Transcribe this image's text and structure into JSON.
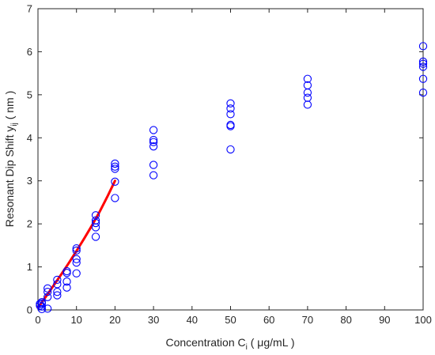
{
  "chart_data": {
    "type": "scatter",
    "xlabel_main": "Concentration C",
    "xlabel_sub": "i",
    "xlabel_unit": " ( μg/mL )",
    "ylabel_main": "Resonant Dip Shift y",
    "ylabel_sub": "ij",
    "ylabel_unit": " ( nm )",
    "xlim": [
      0,
      100
    ],
    "ylim": [
      0,
      7
    ],
    "xticks": [
      0,
      10,
      20,
      30,
      40,
      50,
      60,
      70,
      80,
      90,
      100
    ],
    "yticks": [
      0,
      1,
      2,
      3,
      4,
      5,
      6,
      7
    ],
    "grid": false,
    "legend": "none",
    "series": [
      {
        "type": "scatter",
        "marker": "open-circle",
        "color": "#0000ff",
        "points": [
          {
            "x": 0.5,
            "y": 0.1
          },
          {
            "x": 0.5,
            "y": 0.14
          },
          {
            "x": 1,
            "y": 0.02
          },
          {
            "x": 1,
            "y": 0.08
          },
          {
            "x": 1,
            "y": 0.15
          },
          {
            "x": 1,
            "y": 0.18
          },
          {
            "x": 2.5,
            "y": 0.03
          },
          {
            "x": 2.5,
            "y": 0.3
          },
          {
            "x": 2.5,
            "y": 0.42
          },
          {
            "x": 2.5,
            "y": 0.5
          },
          {
            "x": 5,
            "y": 0.34
          },
          {
            "x": 5,
            "y": 0.42
          },
          {
            "x": 5,
            "y": 0.6
          },
          {
            "x": 5,
            "y": 0.7
          },
          {
            "x": 7.5,
            "y": 0.52
          },
          {
            "x": 7.5,
            "y": 0.66
          },
          {
            "x": 7.5,
            "y": 0.86
          },
          {
            "x": 7.5,
            "y": 0.9
          },
          {
            "x": 10,
            "y": 0.85
          },
          {
            "x": 10,
            "y": 1.1
          },
          {
            "x": 10,
            "y": 1.18
          },
          {
            "x": 10,
            "y": 1.38
          },
          {
            "x": 10,
            "y": 1.43
          },
          {
            "x": 15,
            "y": 1.7
          },
          {
            "x": 15,
            "y": 1.92
          },
          {
            "x": 15,
            "y": 2.02
          },
          {
            "x": 15,
            "y": 2.08
          },
          {
            "x": 15,
            "y": 2.2
          },
          {
            "x": 20,
            "y": 2.6
          },
          {
            "x": 20,
            "y": 2.98
          },
          {
            "x": 20,
            "y": 3.28
          },
          {
            "x": 20,
            "y": 3.33
          },
          {
            "x": 20,
            "y": 3.4
          },
          {
            "x": 30,
            "y": 3.13
          },
          {
            "x": 30,
            "y": 3.37
          },
          {
            "x": 30,
            "y": 3.8
          },
          {
            "x": 30,
            "y": 3.9
          },
          {
            "x": 30,
            "y": 3.95
          },
          {
            "x": 30,
            "y": 4.18
          },
          {
            "x": 50,
            "y": 3.73
          },
          {
            "x": 50,
            "y": 4.27
          },
          {
            "x": 50,
            "y": 4.3
          },
          {
            "x": 50,
            "y": 4.55
          },
          {
            "x": 50,
            "y": 4.68
          },
          {
            "x": 50,
            "y": 4.8
          },
          {
            "x": 70,
            "y": 4.77
          },
          {
            "x": 70,
            "y": 4.93
          },
          {
            "x": 70,
            "y": 5.05
          },
          {
            "x": 70,
            "y": 5.22
          },
          {
            "x": 70,
            "y": 5.37
          },
          {
            "x": 100,
            "y": 5.05
          },
          {
            "x": 100,
            "y": 5.37
          },
          {
            "x": 100,
            "y": 5.65
          },
          {
            "x": 100,
            "y": 5.72
          },
          {
            "x": 100,
            "y": 5.77
          },
          {
            "x": 100,
            "y": 6.13
          }
        ]
      },
      {
        "type": "line",
        "color": "#ff0000",
        "points": [
          {
            "x": 0,
            "y": 0.05
          },
          {
            "x": 2,
            "y": 0.3
          },
          {
            "x": 4,
            "y": 0.56
          },
          {
            "x": 6,
            "y": 0.82
          },
          {
            "x": 8,
            "y": 1.09
          },
          {
            "x": 10,
            "y": 1.37
          },
          {
            "x": 12,
            "y": 1.66
          },
          {
            "x": 14,
            "y": 1.96
          },
          {
            "x": 16,
            "y": 2.28
          },
          {
            "x": 18,
            "y": 2.63
          },
          {
            "x": 20,
            "y": 3.0
          }
        ]
      }
    ]
  }
}
